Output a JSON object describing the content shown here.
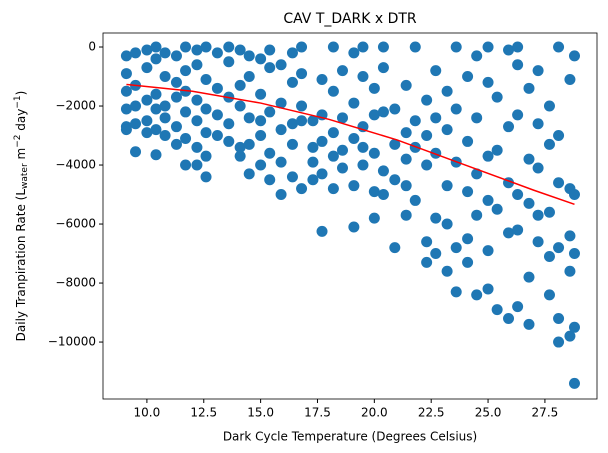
{
  "chart_data": {
    "type": "scatter",
    "title": "CAV T_DARK x DTR",
    "x_label": "Dark Cycle Temperature (Degrees Celsius)",
    "y_label_parts": [
      "Daily Tranpiration Rate (L",
      "water",
      " m",
      "−2",
      " day",
      "−1",
      ")"
    ],
    "color": "#1f77b4",
    "x": [
      9.1,
      9.1,
      9.1,
      9.1,
      9.1,
      9.1,
      9.5,
      9.5,
      9.5,
      9.5,
      9.5,
      10.0,
      10.0,
      10.0,
      10.0,
      10.0,
      10.4,
      10.4,
      10.4,
      10.4,
      10.4,
      10.4,
      10.8,
      10.8,
      10.8,
      10.8,
      10.8,
      11.3,
      11.3,
      11.3,
      11.3,
      11.3,
      11.7,
      11.7,
      11.7,
      11.7,
      11.7,
      11.7,
      12.2,
      12.2,
      12.2,
      12.2,
      12.2,
      12.2,
      12.6,
      12.6,
      12.6,
      12.6,
      12.6,
      12.6,
      13.1,
      13.1,
      13.1,
      13.1,
      13.6,
      13.6,
      13.6,
      13.6,
      13.6,
      14.1,
      14.1,
      14.1,
      14.1,
      14.1,
      14.5,
      14.5,
      14.5,
      14.5,
      14.5,
      15.0,
      15.0,
      15.0,
      15.0,
      15.0,
      15.4,
      15.4,
      15.4,
      15.4,
      15.4,
      15.9,
      15.9,
      15.9,
      15.9,
      15.9,
      16.4,
      16.4,
      16.4,
      16.4,
      16.4,
      16.8,
      16.8,
      16.8,
      16.8,
      16.8,
      17.3,
      17.3,
      17.3,
      17.3,
      17.7,
      17.7,
      17.7,
      17.7,
      17.7,
      18.2,
      18.2,
      18.2,
      18.2,
      18.2,
      18.6,
      18.6,
      18.6,
      18.6,
      19.1,
      19.1,
      19.1,
      19.1,
      19.1,
      19.5,
      19.5,
      19.5,
      19.5,
      19.5,
      20.0,
      20.0,
      20.0,
      20.0,
      20.0,
      20.4,
      20.4,
      20.4,
      20.4,
      20.4,
      20.9,
      20.9,
      20.9,
      20.9,
      21.4,
      21.4,
      21.4,
      21.4,
      21.4,
      21.8,
      21.8,
      21.8,
      21.8,
      22.3,
      22.3,
      22.3,
      22.3,
      22.3,
      22.7,
      22.7,
      22.7,
      22.7,
      22.7,
      23.2,
      23.2,
      23.2,
      23.2,
      23.2,
      23.6,
      23.6,
      23.6,
      23.6,
      23.6,
      24.1,
      24.1,
      24.1,
      24.1,
      24.1,
      24.5,
      24.5,
      24.5,
      24.5,
      24.5,
      25.0,
      25.0,
      25.0,
      25.0,
      25.0,
      25.0,
      25.4,
      25.4,
      25.4,
      25.4,
      25.9,
      25.9,
      25.9,
      25.9,
      25.9,
      26.3,
      26.3,
      26.3,
      26.3,
      26.3,
      26.3,
      26.8,
      26.8,
      26.8,
      26.8,
      26.8,
      27.2,
      27.2,
      27.2,
      27.2,
      27.2,
      27.7,
      27.7,
      27.7,
      27.7,
      27.7,
      28.1,
      28.1,
      28.1,
      28.1,
      28.1,
      28.1,
      28.6,
      28.6,
      28.6,
      28.6,
      28.6,
      28.8,
      28.8,
      28.8,
      28.8,
      28.8
    ],
    "values": [
      -300,
      -900,
      -1500,
      -2100,
      -2700,
      -2800,
      -200,
      -1300,
      -2000,
      -2600,
      -3550,
      -100,
      -700,
      -1800,
      -2500,
      -2900,
      0,
      -400,
      -1600,
      -2100,
      -2800,
      -3650,
      -200,
      -1000,
      -2000,
      -2400,
      -3000,
      -300,
      -1200,
      -1700,
      -2700,
      -3300,
      0,
      -800,
      -1500,
      -2200,
      -3100,
      -4000,
      -100,
      -600,
      -1800,
      -2500,
      -3400,
      -4000,
      0,
      -1100,
      -2100,
      -2900,
      -3700,
      -4400,
      -200,
      -1400,
      -2300,
      -3000,
      0,
      -500,
      -1700,
      -2600,
      -3200,
      -100,
      -1300,
      -2000,
      -3400,
      -3700,
      -300,
      -1000,
      -2400,
      -3300,
      -4300,
      -400,
      -1600,
      -2500,
      -3000,
      -4000,
      -100,
      -700,
      -2200,
      -3600,
      -4500,
      -600,
      -1900,
      -2800,
      -3900,
      -5000,
      -200,
      -1200,
      -2600,
      -3300,
      -4400,
      0,
      -900,
      -2000,
      -2500,
      -4800,
      -2500,
      -3400,
      -3900,
      -4500,
      -1100,
      -2300,
      -3200,
      -4300,
      -6250,
      0,
      -1500,
      -2900,
      -3700,
      -4800,
      -800,
      -2400,
      -3500,
      -4100,
      -200,
      -1900,
      -3100,
      -4700,
      -6100,
      0,
      -1000,
      -2700,
      -3400,
      -4000,
      -1400,
      -2300,
      -3600,
      -4900,
      -5800,
      0,
      -700,
      -2200,
      -4200,
      -5000,
      -2100,
      -3300,
      -4500,
      -6800,
      -1300,
      -2900,
      -3800,
      -4700,
      -5700,
      0,
      -2500,
      -3400,
      -5200,
      -1800,
      -3000,
      -4000,
      -6600,
      -7300,
      -800,
      -2400,
      -3600,
      -5800,
      -7000,
      -1500,
      -2800,
      -4700,
      -6000,
      -7600,
      0,
      -2100,
      -3900,
      -6800,
      -8300,
      -1000,
      -3200,
      -4900,
      -6500,
      -7300,
      -300,
      -2400,
      -4300,
      -5700,
      -8400,
      0,
      -1200,
      -3700,
      -5200,
      -6900,
      -8200,
      -1700,
      -3500,
      -5500,
      -8900,
      -100,
      -2700,
      -4600,
      -6300,
      -9200,
      0,
      -600,
      -2300,
      -5000,
      -6200,
      -8800,
      -1400,
      -3800,
      -5300,
      -7800,
      -9400,
      -800,
      -2600,
      -4100,
      -5700,
      -6600,
      -2000,
      -3300,
      -5600,
      -7100,
      -8400,
      0,
      -3000,
      -4600,
      -6800,
      -9200,
      -10000,
      -1100,
      -4800,
      -6400,
      -7600,
      -9800,
      -300,
      -5000,
      -7000,
      -9500,
      -11400
    ],
    "fit": {
      "color": "#ff0000",
      "x": [
        9.1,
        12,
        15,
        18,
        21,
        24,
        27,
        28.8
      ],
      "values": [
        -1270,
        -1500,
        -1900,
        -2450,
        -3150,
        -4000,
        -4850,
        -5330
      ]
    },
    "xlim": [
      8.07,
      29.79
    ],
    "xticks": [
      {
        "value": 10,
        "label": "10.0"
      },
      12.5,
      {
        "value": 15,
        "label": "15.0"
      },
      17.5,
      {
        "value": 20,
        "label": "20.0"
      },
      22.5,
      {
        "value": 25,
        "label": "25.0"
      },
      27.5
    ],
    "ylim": [
      -11930,
      475
    ],
    "yticks": [
      {
        "value": -10000,
        "label": "−10000"
      },
      {
        "value": -8000,
        "label": "−8000"
      },
      {
        "value": -6000,
        "label": "−6000"
      },
      {
        "value": -4000,
        "label": "−4000"
      },
      {
        "value": -2000,
        "label": "−2000"
      },
      0
    ],
    "grid": false
  }
}
